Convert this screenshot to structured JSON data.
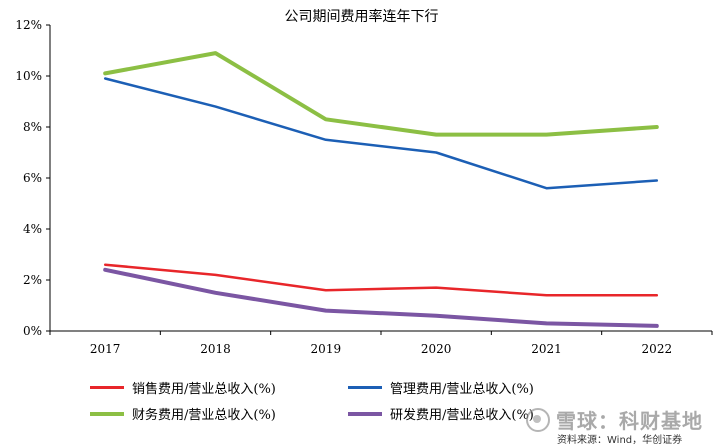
{
  "chart_data": {
    "type": "line",
    "title": "公司期间费用率连年下行",
    "categories": [
      "2017",
      "2018",
      "2019",
      "2020",
      "2021",
      "2022"
    ],
    "ylim": [
      0,
      12
    ],
    "y_ticks": [
      "0%",
      "2%",
      "4%",
      "6%",
      "8%",
      "10%",
      "12%"
    ],
    "grid": false,
    "legend_position": "bottom",
    "series": [
      {
        "name": "销售费用/营业总收入(%)",
        "color": "#e8262a",
        "values": [
          2.6,
          2.2,
          1.6,
          1.7,
          1.4,
          1.4
        ]
      },
      {
        "name": "管理费用/营业总收入(%)",
        "color": "#1c5fb5",
        "values": [
          9.9,
          8.8,
          7.5,
          7.0,
          5.6,
          5.9
        ]
      },
      {
        "name": "财务费用/营业总收入(%)",
        "color": "#8cbf44",
        "values": [
          10.1,
          10.9,
          8.3,
          7.7,
          7.7,
          8.0
        ]
      },
      {
        "name": "研发费用/营业总收入(%)",
        "color": "#7b56a3",
        "values": [
          2.4,
          1.5,
          0.8,
          0.6,
          0.3,
          0.2
        ]
      }
    ]
  },
  "source_note": "资料来源：Wind，华创证券",
  "watermark": {
    "icon": "snowball-icon",
    "text": "雪球：科财基地"
  }
}
